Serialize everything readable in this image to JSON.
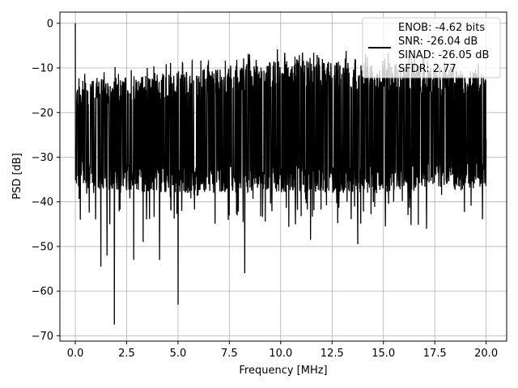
{
  "chart_data": {
    "type": "line",
    "title": "",
    "xlabel": "Frequency [MHz]",
    "ylabel": "PSD [dB]",
    "xlim": [
      -0.75,
      21.0
    ],
    "ylim": [
      -71.2,
      2.5
    ],
    "x_ticks": [
      0.0,
      2.5,
      5.0,
      7.5,
      10.0,
      12.5,
      15.0,
      17.5,
      20.0
    ],
    "x_tick_labels": [
      "0.0",
      "2.5",
      "5.0",
      "7.5",
      "10.0",
      "12.5",
      "15.0",
      "17.5",
      "20.0"
    ],
    "y_ticks": [
      0,
      -10,
      -20,
      -30,
      -40,
      -50,
      -60,
      -70
    ],
    "y_tick_labels": [
      "0",
      "−10",
      "−20",
      "−30",
      "−40",
      "−50",
      "−60",
      "−70"
    ],
    "grid": true,
    "legend_position": "top-right",
    "line_color": "#000000",
    "series": [
      {
        "name": "",
        "x_range": [
          0.0,
          20.0
        ],
        "description_points": {
          "x": [
            0.0,
            0.05,
            0.25,
            1.25,
            1.55,
            1.9,
            2.85,
            3.3,
            4.1,
            5.0,
            8.25,
            11.45,
            13.75,
            15.1,
            17.1,
            20.0
          ],
          "y": [
            0.0,
            -30.0,
            -44.0,
            -54.5,
            -52.0,
            -67.5,
            -53.0,
            -49.0,
            -53.0,
            -63.0,
            -56.0,
            -48.5,
            -49.5,
            -45.5,
            -46.0,
            -26.0
          ]
        },
        "envelope_top": [
          [
            0.0,
            -13.0
          ],
          [
            5.0,
            -11.0
          ],
          [
            10.0,
            -8.0
          ],
          [
            15.0,
            -9.0
          ],
          [
            20.0,
            -11.0
          ]
        ],
        "envelope_bottom": [
          [
            0.0,
            -37.0
          ],
          [
            5.0,
            -38.0
          ],
          [
            10.0,
            -38.0
          ],
          [
            15.0,
            -38.0
          ],
          [
            20.0,
            -37.0
          ]
        ]
      }
    ],
    "legend": {
      "lines": [
        "ENOB: -4.62 bits",
        "SNR: -26.04 dB",
        "SINAD: -26.05 dB",
        "SFDR: 2.77"
      ]
    }
  }
}
